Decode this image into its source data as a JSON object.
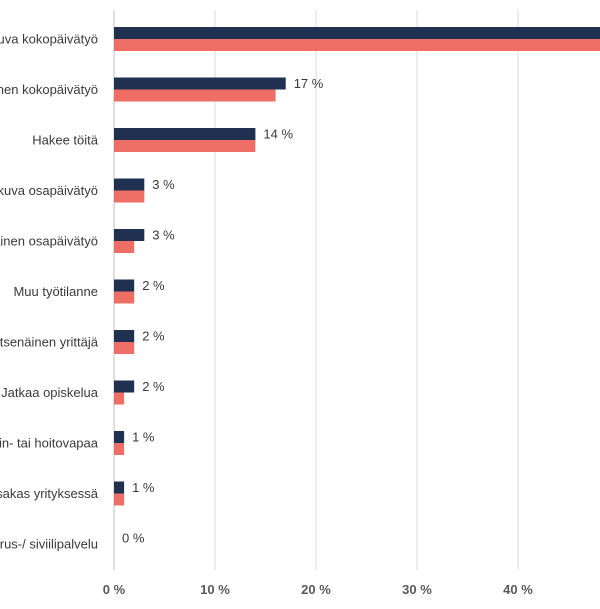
{
  "chart_data": {
    "type": "bar",
    "orientation": "horizontal",
    "categories": [
      "Jatkuva kokopäivätyö",
      "Määräaikainen kokopäivätyö",
      "Hakee töitä",
      "Jatkuva osapäivätyö",
      "Määräaikainen osapäivätyö",
      "Muu työtilanne",
      "Itsenäinen yrittäjä",
      "Jatkaa opiskelua",
      "Vanhempain- tai hoitovapaa",
      "Osakas yrityksessä",
      "Varus-/ siviilipalvelu"
    ],
    "series": [
      {
        "color": "#1f3050",
        "values": [
          49,
          17,
          14,
          3,
          3,
          2,
          2,
          2,
          1,
          1,
          0
        ]
      },
      {
        "color": "#ee6e66",
        "values": [
          49,
          16,
          14,
          3,
          2,
          2,
          2,
          1,
          1,
          1,
          0
        ]
      }
    ],
    "data_labels": [
      "",
      "17 %",
      "14 %",
      "3 %",
      "3 %",
      "2 %",
      "2 %",
      "2 %",
      "1 %",
      "1 %",
      "0 %"
    ],
    "x_ticks": [
      "0 %",
      "10 %",
      "20 %",
      "30 %",
      "40 %"
    ],
    "xlim": [
      0,
      50
    ],
    "grid": true
  }
}
